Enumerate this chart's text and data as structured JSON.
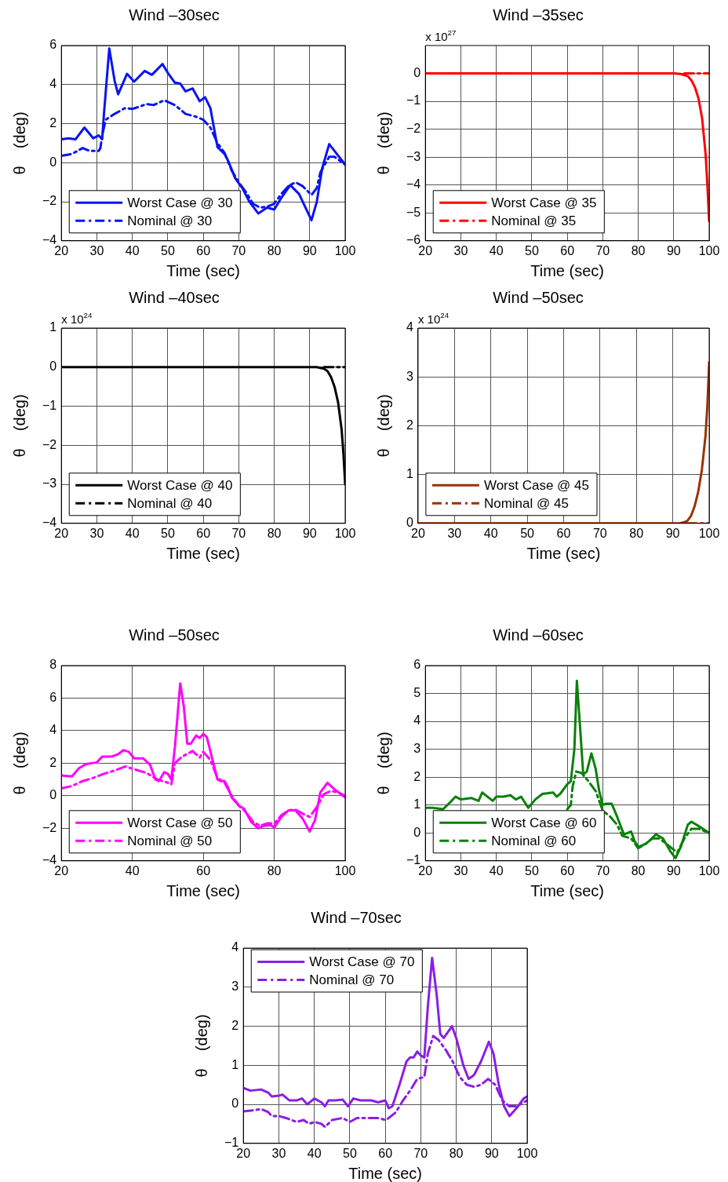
{
  "chart_data": [
    {
      "type": "line",
      "title": "Wind –30sec",
      "xlabel": "Time (sec)",
      "ylabel": "θ    (deg)",
      "xlim": [
        20,
        100
      ],
      "xticks": [
        20,
        30,
        40,
        50,
        60,
        70,
        80,
        90,
        100
      ],
      "ylim": [
        -4,
        6
      ],
      "yticks": [
        -4,
        -2,
        0,
        2,
        4,
        6
      ],
      "grid": true,
      "legend": "bottom left",
      "marker": "none",
      "series": [
        {
          "name": "Worst Case @ 30",
          "color": "#0a14f0",
          "line_style": "solid",
          "x": [
            20,
            22,
            24,
            26.5,
            29,
            30.5,
            31.5,
            32,
            33.5,
            35,
            36,
            38.5,
            40.5,
            43.5,
            45.5,
            48.5,
            50,
            52,
            53.5,
            55,
            57,
            59,
            60.5,
            62,
            63,
            64,
            66,
            67,
            69,
            71,
            73,
            75.5,
            78,
            80,
            82,
            84.5,
            87,
            90.5,
            92,
            93.5,
            95.5,
            97,
            100
          ],
          "values": [
            1.2,
            1.25,
            1.2,
            1.8,
            1.25,
            1.4,
            1.2,
            2.5,
            5.85,
            4.2,
            3.5,
            4.55,
            4.15,
            4.7,
            4.5,
            5.05,
            4.6,
            4.1,
            4.05,
            3.65,
            3.8,
            3.15,
            3.35,
            2.8,
            1.8,
            0.8,
            0.45,
            0.1,
            -0.8,
            -1.3,
            -2.0,
            -2.6,
            -2.3,
            -2.4,
            -1.8,
            -1.15,
            -1.6,
            -2.95,
            -2.0,
            -0.3,
            0.95,
            0.6,
            -0.1
          ]
        },
        {
          "name": "Nominal @ 30",
          "color": "#0a14f0",
          "line_style": "dashed",
          "x": [
            20,
            23,
            26,
            28,
            30.5,
            31,
            31.5,
            32.5,
            35,
            38,
            40,
            44,
            46,
            49,
            52,
            55,
            58,
            60,
            62,
            64,
            66,
            68,
            70,
            72,
            74,
            76,
            78,
            80,
            82,
            84,
            86,
            88,
            90.5,
            92,
            93,
            95.5,
            97,
            100
          ],
          "values": [
            0.35,
            0.45,
            0.75,
            0.6,
            0.6,
            0.75,
            1.4,
            2.2,
            2.5,
            2.8,
            2.75,
            3.0,
            2.95,
            3.2,
            2.95,
            2.5,
            2.35,
            2.2,
            1.8,
            1.0,
            0.5,
            -0.4,
            -1.0,
            -1.5,
            -2.1,
            -2.3,
            -2.25,
            -2.1,
            -1.6,
            -1.2,
            -1.0,
            -1.2,
            -1.65,
            -1.3,
            -0.5,
            0.3,
            0.3,
            -0.1
          ]
        }
      ]
    },
    {
      "type": "line",
      "title": "Wind –35sec",
      "xlabel": "Time (sec)",
      "ylabel": "θ    (deg)",
      "annotations": [
        "x 10$^{27}$"
      ],
      "xlim": [
        20,
        100
      ],
      "xticks": [
        20,
        30,
        40,
        50,
        60,
        70,
        80,
        90,
        100
      ],
      "ylim": [
        -6,
        1
      ],
      "yticks": [
        -6,
        -5,
        -4,
        -3,
        -2,
        -1,
        0
      ],
      "grid": true,
      "legend": "bottom left",
      "marker": "none",
      "series": [
        {
          "name": "Worst Case @ 35",
          "color": "#ff0000",
          "line_style": "solid",
          "x": [
            20,
            90,
            92,
            94,
            95,
            96,
            97,
            98,
            99,
            99.5,
            100
          ],
          "values": [
            0,
            0,
            -0.02,
            -0.1,
            -0.25,
            -0.5,
            -0.9,
            -1.6,
            -2.9,
            -4,
            -5.3
          ]
        },
        {
          "name": "Nominal @ 35",
          "color": "#ff0000",
          "line_style": "dashed",
          "x": [
            93,
            100
          ],
          "values": [
            0,
            0
          ]
        }
      ]
    },
    {
      "type": "line",
      "title": "Wind –40sec",
      "xlabel": "Time (sec)",
      "ylabel": "θ    (deg)",
      "annotations": [
        "x 10$^{24}$"
      ],
      "xlim": [
        20,
        100
      ],
      "xticks": [
        20,
        30,
        40,
        50,
        60,
        70,
        80,
        90,
        100
      ],
      "ylim": [
        -4,
        1
      ],
      "yticks": [
        -4,
        -3,
        -2,
        -1,
        0,
        1
      ],
      "grid": true,
      "legend": "bottom left",
      "marker": "none",
      "series": [
        {
          "name": "Worst Case @ 40",
          "color": "#000000",
          "line_style": "solid",
          "x": [
            20,
            92,
            94,
            95,
            96,
            97,
            98,
            99,
            99.5,
            100
          ],
          "values": [
            0,
            0,
            -0.04,
            -0.1,
            -0.25,
            -0.5,
            -0.9,
            -1.6,
            -2.2,
            -3.0
          ]
        },
        {
          "name": "Nominal @ 40",
          "color": "#000000",
          "line_style": "dashed",
          "x": [
            94,
            100
          ],
          "values": [
            0,
            0
          ]
        }
      ]
    },
    {
      "type": "line",
      "title": "Wind –50sec",
      "xlabel": "Time (sec)",
      "ylabel": "θ    (deg)",
      "annotations": [
        "x 10$^{24}$"
      ],
      "xlim": [
        20,
        100
      ],
      "xticks": [
        20,
        30,
        40,
        50,
        60,
        70,
        80,
        90,
        100
      ],
      "ylim": [
        0,
        4
      ],
      "yticks": [
        0,
        1,
        2,
        3,
        4
      ],
      "grid": true,
      "legend": "bottom left",
      "marker": "none",
      "series": [
        {
          "name": "Worst Case @ 45",
          "color": "#993300",
          "line_style": "solid",
          "x": [
            20,
            92,
            93,
            94,
            95,
            96,
            97,
            98,
            99,
            99.5,
            100
          ],
          "values": [
            0,
            0,
            0.02,
            0.05,
            0.15,
            0.35,
            0.65,
            1.1,
            1.8,
            2.4,
            3.3
          ]
        },
        {
          "name": "Nominal @ 45",
          "color": "#993300",
          "line_style": "dashed",
          "x": [
            94,
            100
          ],
          "values": [
            0,
            0
          ]
        }
      ]
    },
    {
      "type": "line",
      "title": "Wind –50sec",
      "xlabel": "Time (sec)",
      "ylabel": "θ    (deg)",
      "xlim": [
        20,
        100
      ],
      "xticks": [
        20,
        40,
        60,
        80,
        100
      ],
      "ylim": [
        -4,
        8
      ],
      "yticks": [
        -4,
        -2,
        0,
        2,
        4,
        6,
        8
      ],
      "grid": true,
      "legend": "bottom left",
      "marker": "none",
      "series": [
        {
          "name": "Worst Case @ 50",
          "color": "#ff00ff",
          "line_style": "solid",
          "x": [
            20,
            22,
            23,
            25,
            27,
            30,
            31.5,
            34,
            36,
            37.5,
            39,
            40.5,
            43,
            45,
            46.5,
            47.5,
            49,
            50,
            51,
            52,
            53.5,
            54.5,
            55.5,
            56.5,
            58,
            59,
            60,
            61,
            62.5,
            64,
            65,
            66,
            67,
            68,
            70,
            71.5,
            73.5,
            75.5,
            77,
            79,
            80,
            82,
            84,
            86,
            88,
            90,
            91.5,
            93,
            95,
            97,
            100
          ],
          "values": [
            1.25,
            1.2,
            1.2,
            1.7,
            1.95,
            2.05,
            2.4,
            2.4,
            2.55,
            2.8,
            2.7,
            2.3,
            2.3,
            1.9,
            1.0,
            0.9,
            1.45,
            1.35,
            1.0,
            3.0,
            6.9,
            5.5,
            3.2,
            3.2,
            3.7,
            3.55,
            3.8,
            3.6,
            2.3,
            1.0,
            0.9,
            0.9,
            0.5,
            -0.1,
            -0.6,
            -0.8,
            -1.6,
            -2.0,
            -1.85,
            -1.8,
            -1.95,
            -1.3,
            -0.9,
            -0.9,
            -1.4,
            -2.2,
            -1.5,
            0.2,
            0.8,
            0.4,
            -0.1
          ]
        },
        {
          "name": "Nominal @ 50",
          "color": "#ff00ff",
          "line_style": "dashed",
          "x": [
            20,
            23,
            26,
            29,
            32,
            35,
            38,
            41,
            44,
            47,
            50,
            51,
            52,
            54,
            57,
            59,
            60,
            62,
            64,
            66,
            68,
            70,
            72,
            74,
            76,
            78,
            80,
            82,
            84,
            86,
            88,
            90,
            92,
            94,
            96,
            98,
            100
          ],
          "values": [
            0.45,
            0.6,
            0.9,
            1.1,
            1.35,
            1.55,
            1.8,
            1.6,
            1.4,
            1.0,
            0.8,
            0.7,
            2.0,
            2.4,
            2.75,
            2.35,
            2.7,
            2.2,
            1.1,
            0.8,
            0.0,
            -0.6,
            -1.0,
            -1.6,
            -1.85,
            -1.7,
            -1.7,
            -1.2,
            -0.9,
            -0.85,
            -1.1,
            -1.3,
            -0.7,
            0.1,
            0.3,
            0.2,
            0.0
          ]
        }
      ]
    },
    {
      "type": "line",
      "title": "Wind –60sec",
      "xlabel": "Time (sec)",
      "ylabel": "θ    (deg)",
      "xlim": [
        20,
        100
      ],
      "xticks": [
        20,
        30,
        40,
        50,
        60,
        70,
        80,
        90,
        100
      ],
      "ylim": [
        -1,
        6
      ],
      "yticks": [
        -1,
        0,
        1,
        2,
        3,
        4,
        5,
        6
      ],
      "grid": true,
      "legend": "bottom left",
      "marker": "none",
      "series": [
        {
          "name": "Worst Case @ 60",
          "color": "#0a800a",
          "line_style": "solid",
          "x": [
            20,
            22,
            25,
            27,
            28.5,
            30,
            33,
            35,
            36,
            38,
            39,
            40,
            42,
            44,
            45.5,
            47,
            49,
            51,
            53,
            56,
            57,
            58,
            60,
            61,
            62,
            62.7,
            63.5,
            64.5,
            65.5,
            66.8,
            68,
            69,
            70,
            71,
            72.5,
            74,
            75.5,
            76,
            78,
            79,
            80,
            82,
            83,
            85,
            87,
            89,
            90.5,
            92,
            94,
            95,
            97,
            100
          ],
          "values": [
            0.9,
            0.9,
            0.85,
            1.1,
            1.3,
            1.2,
            1.25,
            1.15,
            1.45,
            1.25,
            1.15,
            1.3,
            1.3,
            1.35,
            1.2,
            1.3,
            0.9,
            1.2,
            1.4,
            1.45,
            1.3,
            1.4,
            1.75,
            1.85,
            3.0,
            5.45,
            4.0,
            2.1,
            2.2,
            2.85,
            2.3,
            1.5,
            1.0,
            1.05,
            1.05,
            0.6,
            0.1,
            -0.05,
            0.05,
            -0.3,
            -0.5,
            -0.4,
            -0.3,
            -0.05,
            -0.2,
            -0.65,
            -0.9,
            -0.5,
            0.3,
            0.4,
            0.25,
            0.0
          ]
        },
        {
          "name": "Nominal @ 60",
          "color": "#0a800a",
          "line_style": "dashed",
          "x": [
            60,
            61,
            61.5,
            62.5,
            64,
            66,
            68,
            70,
            72,
            74,
            75.5,
            78,
            80,
            82,
            84,
            86,
            88,
            90,
            91,
            93,
            95,
            97,
            100
          ],
          "values": [
            0.85,
            1.0,
            1.65,
            2.2,
            2.15,
            1.85,
            1.5,
            0.8,
            0.6,
            0.3,
            -0.1,
            -0.2,
            -0.55,
            -0.4,
            -0.2,
            -0.2,
            -0.4,
            -0.6,
            -0.7,
            -0.2,
            0.15,
            0.15,
            0.0
          ]
        }
      ]
    },
    {
      "type": "line",
      "title": "Wind –70sec",
      "xlabel": "Time (sec)",
      "ylabel": "θ    (deg)",
      "xlim": [
        20,
        100
      ],
      "xticks": [
        20,
        30,
        40,
        50,
        60,
        70,
        80,
        90,
        100
      ],
      "ylim": [
        -1,
        4
      ],
      "yticks": [
        -1,
        0,
        1,
        2,
        3,
        4
      ],
      "grid": true,
      "legend": "top left",
      "marker": "none",
      "series": [
        {
          "name": "Worst Case @ 70",
          "color": "#8a1ee6",
          "line_style": "solid",
          "x": [
            20,
            22,
            25,
            27,
            28,
            30,
            31,
            33,
            35,
            36.5,
            38,
            40,
            42,
            43,
            44,
            46,
            48,
            49.5,
            51,
            53,
            56,
            58,
            60,
            61,
            62,
            64,
            66,
            67,
            68,
            69,
            70,
            71,
            72,
            73.2,
            74.5,
            75.5,
            76.5,
            78.8,
            80,
            82,
            83.5,
            85,
            87,
            89.2,
            90.5,
            92,
            93.5,
            95,
            97,
            99,
            100
          ],
          "values": [
            0.42,
            0.35,
            0.38,
            0.3,
            0.2,
            0.22,
            0.25,
            0.1,
            0.1,
            0.15,
            0.0,
            0.15,
            0.05,
            -0.05,
            0.1,
            0.1,
            0.12,
            -0.05,
            0.15,
            0.1,
            0.1,
            0.05,
            0.1,
            -0.1,
            -0.05,
            0.5,
            1.1,
            1.2,
            1.2,
            1.35,
            1.25,
            1.2,
            2.5,
            3.75,
            2.8,
            1.8,
            1.7,
            2.0,
            1.7,
            1.0,
            0.65,
            0.75,
            1.1,
            1.6,
            1.3,
            0.5,
            -0.05,
            -0.3,
            -0.1,
            0.15,
            0.2
          ]
        },
        {
          "name": "Nominal @ 70",
          "color": "#8a1ee6",
          "line_style": "dashed",
          "x": [
            20,
            23,
            25,
            27,
            28,
            30,
            32,
            35,
            37,
            38.5,
            40,
            42,
            43,
            45,
            48,
            50,
            52,
            55,
            58,
            60,
            61,
            63,
            65,
            67,
            69,
            71,
            72,
            73.5,
            75,
            77,
            79,
            81,
            83,
            85,
            87,
            89,
            91,
            93,
            95,
            97,
            100
          ],
          "values": [
            -0.18,
            -0.15,
            -0.12,
            -0.2,
            -0.3,
            -0.3,
            -0.35,
            -0.45,
            -0.4,
            -0.5,
            -0.45,
            -0.5,
            -0.58,
            -0.4,
            -0.35,
            -0.45,
            -0.35,
            -0.35,
            -0.35,
            -0.4,
            -0.35,
            -0.2,
            0.1,
            0.35,
            0.65,
            0.7,
            1.3,
            1.75,
            1.65,
            1.4,
            1.1,
            0.7,
            0.5,
            0.45,
            0.5,
            0.65,
            0.5,
            0.1,
            -0.05,
            -0.05,
            0.1
          ]
        }
      ]
    }
  ]
}
